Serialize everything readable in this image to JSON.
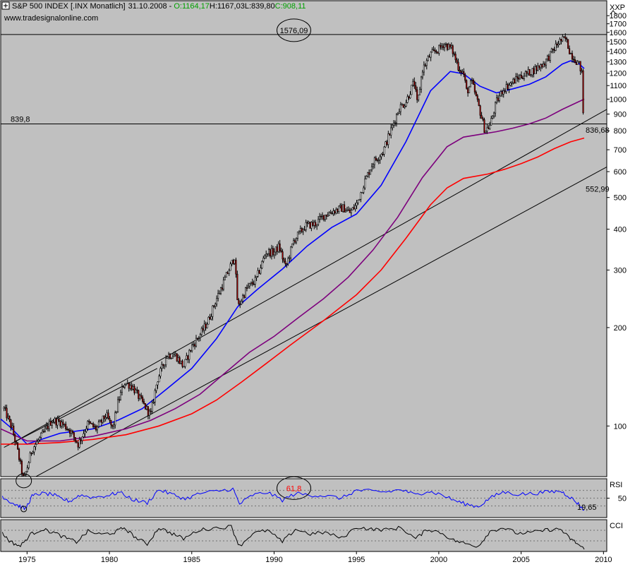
{
  "header": {
    "symbol": "S&P 500 INDEX [.INX  Monatlich]",
    "date": "31.10.2008",
    "sep": "-",
    "open": "O:1164,17",
    "high": "H:1167,03",
    "low": "L:839,80",
    "close": "C:908,11",
    "source": "www.tradesignalonline.com"
  },
  "colors": {
    "background": "#c0c0c0",
    "candle_up": "#ffffff",
    "candle_down": "#b00000",
    "ma_fast": "#0000ff",
    "ma_mid": "#7d007d",
    "ma_slow": "#ff0000",
    "open_color": "#00a000",
    "close_color": "#00a000",
    "level_618": "#ff0000",
    "rsi": "#0000ff"
  },
  "chart_data": [
    {
      "type": "candlestick",
      "scale": "log",
      "ylim": [
        70,
        2000
      ],
      "xlim": [
        1973.4,
        2010.2
      ],
      "y_axis_label": "XXP",
      "y_ticks": [
        100,
        200,
        300,
        400,
        500,
        600,
        700,
        800,
        900,
        1000,
        1100,
        1200,
        1300,
        1400,
        1500,
        1600,
        1700,
        1800
      ],
      "x_ticks": [
        1975,
        1980,
        1985,
        1990,
        1995,
        2000,
        2005,
        2010
      ],
      "price_anchors": [
        [
          1973.6,
          113
        ],
        [
          1974.1,
          98
        ],
        [
          1974.4,
          85
        ],
        [
          1974.8,
          68
        ],
        [
          1975.3,
          85
        ],
        [
          1975.8,
          92
        ],
        [
          1976.5,
          104
        ],
        [
          1977.0,
          103
        ],
        [
          1977.6,
          97
        ],
        [
          1978.1,
          88
        ],
        [
          1978.7,
          102
        ],
        [
          1979.2,
          98
        ],
        [
          1979.8,
          108
        ],
        [
          1980.2,
          98
        ],
        [
          1980.5,
          117
        ],
        [
          1980.9,
          136
        ],
        [
          1981.4,
          132
        ],
        [
          1981.9,
          120
        ],
        [
          1982.5,
          108
        ],
        [
          1982.9,
          138
        ],
        [
          1983.5,
          165
        ],
        [
          1984.0,
          165
        ],
        [
          1984.5,
          152
        ],
        [
          1985.0,
          175
        ],
        [
          1985.5,
          190
        ],
        [
          1986.0,
          210
        ],
        [
          1986.5,
          245
        ],
        [
          1987.0,
          280
        ],
        [
          1987.6,
          330
        ],
        [
          1987.8,
          230
        ],
        [
          1988.3,
          262
        ],
        [
          1988.9,
          280
        ],
        [
          1989.5,
          340
        ],
        [
          1990.0,
          340
        ],
        [
          1990.3,
          355
        ],
        [
          1990.7,
          305
        ],
        [
          1991.2,
          370
        ],
        [
          1991.9,
          410
        ],
        [
          1992.5,
          415
        ],
        [
          1993.0,
          440
        ],
        [
          1993.6,
          455
        ],
        [
          1994.2,
          465
        ],
        [
          1994.6,
          450
        ],
        [
          1995.0,
          475
        ],
        [
          1995.5,
          560
        ],
        [
          1996.0,
          640
        ],
        [
          1996.6,
          690
        ],
        [
          1997.0,
          780
        ],
        [
          1997.6,
          940
        ],
        [
          1998.0,
          980
        ],
        [
          1998.5,
          1130
        ],
        [
          1998.7,
          960
        ],
        [
          1999.0,
          1230
        ],
        [
          1999.5,
          1370
        ],
        [
          2000.0,
          1420
        ],
        [
          2000.3,
          1480
        ],
        [
          2000.8,
          1420
        ],
        [
          2001.2,
          1250
        ],
        [
          2001.5,
          1200
        ],
        [
          2001.7,
          1050
        ],
        [
          2002.0,
          1130
        ],
        [
          2002.5,
          920
        ],
        [
          2002.8,
          800
        ],
        [
          2003.1,
          830
        ],
        [
          2003.5,
          980
        ],
        [
          2003.9,
          1070
        ],
        [
          2004.4,
          1120
        ],
        [
          2004.9,
          1170
        ],
        [
          2005.4,
          1200
        ],
        [
          2005.9,
          1240
        ],
        [
          2006.4,
          1290
        ],
        [
          2006.9,
          1400
        ],
        [
          2007.3,
          1500
        ],
        [
          2007.7,
          1530
        ],
        [
          2008.0,
          1380
        ],
        [
          2008.3,
          1320
        ],
        [
          2008.5,
          1280
        ],
        [
          2008.6,
          1240
        ],
        [
          2008.75,
          1164
        ],
        [
          2008.83,
          908
        ]
      ],
      "moving_averages": [
        {
          "role": "fast",
          "points": [
            [
              1973.4,
              105
            ],
            [
              1974.0,
              99
            ],
            [
              1975.0,
              88
            ],
            [
              1977.0,
              95
            ],
            [
              1979.0,
              98
            ],
            [
              1980.5,
              104
            ],
            [
              1982.0,
              113
            ],
            [
              1983.5,
              130
            ],
            [
              1985.0,
              150
            ],
            [
              1986.5,
              185
            ],
            [
              1987.8,
              232
            ],
            [
              1989.0,
              262
            ],
            [
              1990.5,
              302
            ],
            [
              1992.0,
              355
            ],
            [
              1993.5,
              405
            ],
            [
              1995.0,
              445
            ],
            [
              1996.5,
              545
            ],
            [
              1998.0,
              740
            ],
            [
              1999.5,
              1060
            ],
            [
              2000.7,
              1215
            ],
            [
              2001.5,
              1195
            ],
            [
              2002.5,
              1095
            ],
            [
              2003.5,
              1045
            ],
            [
              2004.5,
              1075
            ],
            [
              2005.5,
              1110
            ],
            [
              2006.5,
              1170
            ],
            [
              2007.5,
              1280
            ],
            [
              2008.0,
              1310
            ],
            [
              2008.5,
              1285
            ],
            [
              2008.83,
              1240
            ]
          ]
        },
        {
          "role": "mid",
          "points": [
            [
              1973.4,
              98
            ],
            [
              1975.0,
              90
            ],
            [
              1977.0,
              90
            ],
            [
              1979.0,
              93
            ],
            [
              1981.0,
              98
            ],
            [
              1982.5,
              104
            ],
            [
              1984.0,
              113
            ],
            [
              1985.5,
              125
            ],
            [
              1987.0,
              145
            ],
            [
              1988.5,
              168
            ],
            [
              1990.0,
              188
            ],
            [
              1991.5,
              215
            ],
            [
              1993.0,
              245
            ],
            [
              1994.5,
              285
            ],
            [
              1996.0,
              345
            ],
            [
              1997.5,
              435
            ],
            [
              1999.0,
              575
            ],
            [
              2000.5,
              715
            ],
            [
              2001.5,
              765
            ],
            [
              2002.5,
              780
            ],
            [
              2003.5,
              795
            ],
            [
              2004.5,
              815
            ],
            [
              2005.5,
              840
            ],
            [
              2006.5,
              875
            ],
            [
              2007.5,
              930
            ],
            [
              2008.83,
              1000
            ]
          ]
        },
        {
          "role": "slow",
          "points": [
            [
              1973.4,
              88
            ],
            [
              1975.0,
              88
            ],
            [
              1977.0,
              89
            ],
            [
              1979.0,
              91
            ],
            [
              1981.0,
              94
            ],
            [
              1983.0,
              100
            ],
            [
              1985.0,
              109
            ],
            [
              1986.5,
              120
            ],
            [
              1988.0,
              136
            ],
            [
              1989.5,
              155
            ],
            [
              1991.0,
              177
            ],
            [
              1993.0,
              210
            ],
            [
              1995.0,
              252
            ],
            [
              1996.5,
              300
            ],
            [
              1998.0,
              375
            ],
            [
              1999.5,
              475
            ],
            [
              2000.5,
              535
            ],
            [
              2001.5,
              572
            ],
            [
              2003.0,
              590
            ],
            [
              2004.0,
              610
            ],
            [
              2005.0,
              635
            ],
            [
              2006.0,
              665
            ],
            [
              2007.0,
              705
            ],
            [
              2008.0,
              740
            ],
            [
              2008.83,
              760
            ]
          ]
        }
      ],
      "trend_lines": [
        [
          [
            1974.0,
            88
          ],
          [
            2010.2,
            930
          ]
        ],
        [
          [
            1974.6,
            66
          ],
          [
            2010.2,
            620
          ]
        ],
        [
          [
            1973.6,
            86
          ],
          [
            1982.9,
            150
          ]
        ]
      ],
      "horizontal_levels": [
        {
          "value": 1576.09,
          "label": "1576,09",
          "circled": true
        },
        {
          "value": 839.8,
          "label": "839,8"
        },
        {
          "value": 66.5,
          "label": "61,8",
          "circled": true,
          "color_role": "level_618"
        }
      ],
      "annotations": [
        {
          "x": 2008.83,
          "y": 836.68,
          "label": "836,68"
        },
        {
          "x": 2008.83,
          "y": 552.99,
          "label": "552,99"
        }
      ]
    },
    {
      "type": "line",
      "title": "RSI",
      "ylim": [
        0,
        100
      ],
      "reference_lines": [
        30,
        50,
        70
      ],
      "last_value_label": "19,65",
      "y_tick_label": "50",
      "points": [
        [
          1973.5,
          55
        ],
        [
          1974.0,
          40
        ],
        [
          1974.5,
          30
        ],
        [
          1974.9,
          22
        ],
        [
          1975.3,
          55
        ],
        [
          1975.8,
          62
        ],
        [
          1976.5,
          60
        ],
        [
          1977.0,
          50
        ],
        [
          1977.6,
          42
        ],
        [
          1978.2,
          58
        ],
        [
          1979.0,
          52
        ],
        [
          1980.0,
          58
        ],
        [
          1980.6,
          65
        ],
        [
          1981.5,
          45
        ],
        [
          1982.3,
          38
        ],
        [
          1983.0,
          72
        ],
        [
          1983.8,
          60
        ],
        [
          1984.6,
          48
        ],
        [
          1985.5,
          62
        ],
        [
          1986.5,
          68
        ],
        [
          1987.5,
          74
        ],
        [
          1987.9,
          35
        ],
        [
          1988.7,
          58
        ],
        [
          1989.6,
          65
        ],
        [
          1990.5,
          45
        ],
        [
          1991.3,
          62
        ],
        [
          1992.2,
          58
        ],
        [
          1993.1,
          56
        ],
        [
          1994.1,
          50
        ],
        [
          1995.0,
          70
        ],
        [
          1995.9,
          68
        ],
        [
          1996.8,
          66
        ],
        [
          1997.7,
          72
        ],
        [
          1998.6,
          58
        ],
        [
          1999.3,
          68
        ],
        [
          2000.1,
          60
        ],
        [
          2000.9,
          45
        ],
        [
          2001.6,
          35
        ],
        [
          2002.4,
          28
        ],
        [
          2003.1,
          50
        ],
        [
          2003.9,
          66
        ],
        [
          2004.8,
          60
        ],
        [
          2005.7,
          62
        ],
        [
          2006.6,
          66
        ],
        [
          2007.4,
          68
        ],
        [
          2007.9,
          55
        ],
        [
          2008.4,
          38
        ],
        [
          2008.83,
          19.65
        ]
      ]
    },
    {
      "type": "line",
      "title": "CCI",
      "ylim": [
        -300,
        300
      ],
      "reference_lines": [
        -100,
        100
      ],
      "points": [
        [
          1973.5,
          40
        ],
        [
          1974.0,
          -120
        ],
        [
          1974.6,
          -200
        ],
        [
          1975.2,
          20
        ],
        [
          1975.9,
          120
        ],
        [
          1976.6,
          60
        ],
        [
          1977.3,
          -40
        ],
        [
          1978.0,
          -120
        ],
        [
          1978.7,
          80
        ],
        [
          1979.5,
          20
        ],
        [
          1980.3,
          60
        ],
        [
          1980.9,
          150
        ],
        [
          1981.6,
          -40
        ],
        [
          1982.3,
          -160
        ],
        [
          1983.0,
          150
        ],
        [
          1983.8,
          40
        ],
        [
          1984.5,
          -60
        ],
        [
          1985.4,
          100
        ],
        [
          1986.3,
          140
        ],
        [
          1987.4,
          170
        ],
        [
          1987.9,
          -200
        ],
        [
          1988.7,
          40
        ],
        [
          1989.6,
          100
        ],
        [
          1990.5,
          -120
        ],
        [
          1991.3,
          120
        ],
        [
          1992.2,
          30
        ],
        [
          1993.1,
          60
        ],
        [
          1994.1,
          -50
        ],
        [
          1995.0,
          160
        ],
        [
          1995.9,
          120
        ],
        [
          1996.8,
          110
        ],
        [
          1997.7,
          150
        ],
        [
          1998.6,
          -60
        ],
        [
          1999.3,
          120
        ],
        [
          2000.1,
          60
        ],
        [
          2000.9,
          -90
        ],
        [
          2001.6,
          -150
        ],
        [
          2002.4,
          -200
        ],
        [
          2003.1,
          80
        ],
        [
          2003.9,
          150
        ],
        [
          2004.8,
          40
        ],
        [
          2005.7,
          60
        ],
        [
          2006.6,
          110
        ],
        [
          2007.4,
          120
        ],
        [
          2007.9,
          -40
        ],
        [
          2008.4,
          -150
        ],
        [
          2008.83,
          -260
        ]
      ]
    }
  ]
}
